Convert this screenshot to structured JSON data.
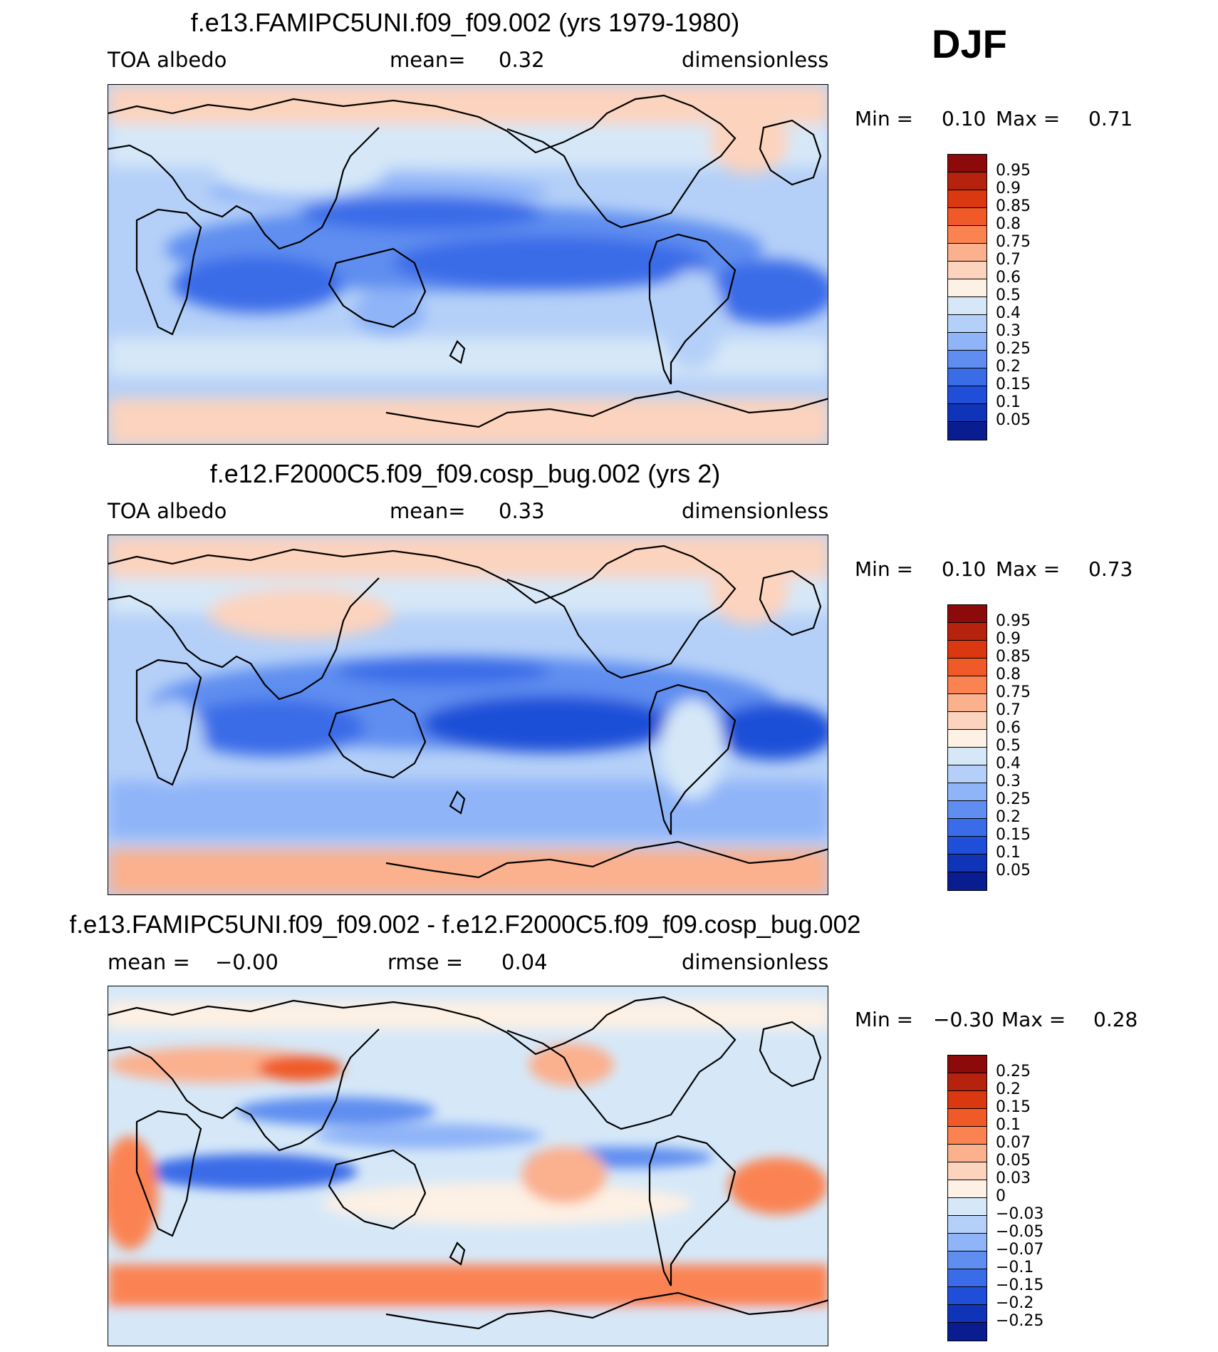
{
  "season": "DJF",
  "panels": [
    {
      "title": "f.e13.FAMIPC5UNI.f09_f09.002 (yrs 1979-1980)",
      "left_label": "TOA albedo",
      "center_label": "mean=",
      "center_value": "0.32",
      "right_label": "dimensionless",
      "min_label": "Min =",
      "min_value": "0.10",
      "max_label": "Max =",
      "max_value": "0.71",
      "colorbar": {
        "labels": [
          "0.95",
          "0.9",
          "0.85",
          "0.8",
          "0.75",
          "0.7",
          "0.6",
          "0.5",
          "0.4",
          "0.3",
          "0.25",
          "0.2",
          "0.15",
          "0.1",
          "0.05"
        ],
        "colors": [
          "#8c0a0a",
          "#b5230e",
          "#da3810",
          "#f05a28",
          "#fb8352",
          "#fbb08e",
          "#fcd3bd",
          "#fdf0e4",
          "#d6e8f8",
          "#b5d0f8",
          "#8fb4f8",
          "#5f8ef0",
          "#3a6ce8",
          "#1f4fd8",
          "#1034b8",
          "#0a1d90"
        ]
      },
      "chart_data": {
        "type": "heatmap",
        "title": "f.e13.FAMIPC5UNI.f09_f09.002 (yrs 1979-1980)",
        "variable": "TOA albedo",
        "units": "dimensionless",
        "mean": 0.32,
        "min": 0.1,
        "max": 0.71,
        "contour_levels": [
          0.05,
          0.1,
          0.15,
          0.2,
          0.25,
          0.3,
          0.4,
          0.5,
          0.6,
          0.7,
          0.75,
          0.8,
          0.85,
          0.9,
          0.95
        ]
      }
    },
    {
      "title": "f.e12.F2000C5.f09_f09.cosp_bug.002 (yrs 2)",
      "left_label": "TOA albedo",
      "center_label": "mean=",
      "center_value": "0.33",
      "right_label": "dimensionless",
      "min_label": "Min =",
      "min_value": "0.10",
      "max_label": "Max =",
      "max_value": "0.73",
      "colorbar": {
        "labels": [
          "0.95",
          "0.9",
          "0.85",
          "0.8",
          "0.75",
          "0.7",
          "0.6",
          "0.5",
          "0.4",
          "0.3",
          "0.25",
          "0.2",
          "0.15",
          "0.1",
          "0.05"
        ],
        "colors": [
          "#8c0a0a",
          "#b5230e",
          "#da3810",
          "#f05a28",
          "#fb8352",
          "#fbb08e",
          "#fcd3bd",
          "#fdf0e4",
          "#d6e8f8",
          "#b5d0f8",
          "#8fb4f8",
          "#5f8ef0",
          "#3a6ce8",
          "#1f4fd8",
          "#1034b8",
          "#0a1d90"
        ]
      },
      "chart_data": {
        "type": "heatmap",
        "title": "f.e12.F2000C5.f09_f09.cosp_bug.002 (yrs 2)",
        "variable": "TOA albedo",
        "units": "dimensionless",
        "mean": 0.33,
        "min": 0.1,
        "max": 0.73,
        "contour_levels": [
          0.05,
          0.1,
          0.15,
          0.2,
          0.25,
          0.3,
          0.4,
          0.5,
          0.6,
          0.7,
          0.75,
          0.8,
          0.85,
          0.9,
          0.95
        ]
      }
    },
    {
      "title": "f.e13.FAMIPC5UNI.f09_f09.002 - f.e12.F2000C5.f09_f09.cosp_bug.002",
      "left_label": "mean =",
      "left_value": "−0.00",
      "center_label": "rmse =",
      "center_value": "0.04",
      "right_label": "dimensionless",
      "min_label": "Min =",
      "min_value": "−0.30",
      "max_label": "Max =",
      "max_value": "0.28",
      "colorbar": {
        "labels": [
          "0.25",
          "0.2",
          "0.15",
          "0.1",
          "0.07",
          "0.05",
          "0.03",
          "0",
          "−0.03",
          "−0.05",
          "−0.07",
          "−0.1",
          "−0.15",
          "−0.2",
          "−0.25"
        ],
        "colors": [
          "#8c0a0a",
          "#b5230e",
          "#da3810",
          "#f05a28",
          "#fb8352",
          "#fbb08e",
          "#fcd3bd",
          "#fdf0e4",
          "#d6e8f8",
          "#b5d0f8",
          "#8fb4f8",
          "#5f8ef0",
          "#3a6ce8",
          "#1f4fd8",
          "#1034b8",
          "#0a1d90"
        ]
      },
      "chart_data": {
        "type": "heatmap",
        "title": "f.e13.FAMIPC5UNI.f09_f09.002 - f.e12.F2000C5.f09_f09.cosp_bug.002",
        "variable": "difference",
        "units": "dimensionless",
        "mean": -0.0,
        "rmse": 0.04,
        "min": -0.3,
        "max": 0.28,
        "contour_levels": [
          -0.25,
          -0.2,
          -0.15,
          -0.1,
          -0.07,
          -0.05,
          -0.03,
          0,
          0.03,
          0.05,
          0.07,
          0.1,
          0.15,
          0.2,
          0.25
        ]
      }
    }
  ]
}
